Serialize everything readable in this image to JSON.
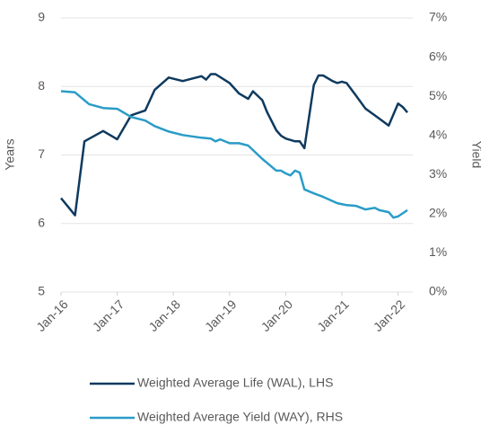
{
  "chart_data": {
    "type": "line",
    "y_label": "Years",
    "y2_label": "Yield",
    "xlim": [
      "2016-01",
      "2022-03"
    ],
    "xticks": [
      {
        "value": "2016-01",
        "label": "Jan-16"
      },
      {
        "value": "2017-01",
        "label": "Jan-17"
      },
      {
        "value": "2018-01",
        "label": "Jan-18"
      },
      {
        "value": "2019-01",
        "label": "Jan-19"
      },
      {
        "value": "2020-01",
        "label": "Jan-20"
      },
      {
        "value": "2021-01",
        "label": "Jan-21"
      },
      {
        "value": "2022-01",
        "label": "Jan-22"
      }
    ],
    "ylim": [
      5,
      9
    ],
    "yticks": [
      5,
      6,
      7,
      8,
      9
    ],
    "y2lim": [
      0,
      7
    ],
    "y2ticks": [
      {
        "value": 0,
        "label": "0%"
      },
      {
        "value": 1,
        "label": "1%"
      },
      {
        "value": 2,
        "label": "2%"
      },
      {
        "value": 3,
        "label": "3%"
      },
      {
        "value": 4,
        "label": "4%"
      },
      {
        "value": 5,
        "label": "5%"
      },
      {
        "value": 6,
        "label": "6%"
      },
      {
        "value": 7,
        "label": "7%"
      }
    ],
    "grid": true,
    "legend": "bottom",
    "series": [
      {
        "name": "Weighted Average Life (WAL), LHS",
        "color": "#0e3a5f",
        "axis": "y",
        "x": [
          "2016-01",
          "2016-04",
          "2016-06",
          "2016-10",
          "2017-01",
          "2017-04",
          "2017-07",
          "2017-09",
          "2017-12",
          "2018-03",
          "2018-07",
          "2018-08",
          "2018-09",
          "2018-10",
          "2019-01",
          "2019-03",
          "2019-05",
          "2019-06",
          "2019-08",
          "2019-09",
          "2019-11",
          "2019-12",
          "2020-01",
          "2020-03",
          "2020-04",
          "2020-05",
          "2020-07",
          "2020-08",
          "2020-09",
          "2020-11",
          "2020-12",
          "2021-01",
          "2021-02",
          "2021-04",
          "2021-06",
          "2021-08",
          "2021-10",
          "2021-11",
          "2022-01",
          "2022-02",
          "2022-03"
        ],
        "values": [
          6.37,
          6.12,
          7.2,
          7.35,
          7.23,
          7.58,
          7.65,
          7.95,
          8.13,
          8.08,
          8.15,
          8.1,
          8.18,
          8.18,
          8.05,
          7.9,
          7.82,
          7.93,
          7.8,
          7.63,
          7.36,
          7.28,
          7.24,
          7.2,
          7.2,
          7.1,
          8.02,
          8.16,
          8.16,
          8.08,
          8.05,
          8.07,
          8.05,
          7.87,
          7.68,
          7.58,
          7.48,
          7.43,
          7.75,
          7.7,
          7.62
        ]
      },
      {
        "name": "Weighted Average Yield (WAY), RHS",
        "color": "#2a9cc8",
        "axis": "y2",
        "x": [
          "2016-01",
          "2016-04",
          "2016-07",
          "2016-10",
          "2017-01",
          "2017-04",
          "2017-07",
          "2017-09",
          "2017-12",
          "2018-03",
          "2018-07",
          "2018-09",
          "2018-10",
          "2018-11",
          "2019-01",
          "2019-03",
          "2019-05",
          "2019-08",
          "2019-09",
          "2019-11",
          "2019-12",
          "2020-01",
          "2020-02",
          "2020-03",
          "2020-04",
          "2020-05",
          "2020-07",
          "2020-09",
          "2020-12",
          "2021-02",
          "2021-04",
          "2021-06",
          "2021-08",
          "2021-09",
          "2021-11",
          "2021-12",
          "2022-01",
          "2022-03"
        ],
        "values": [
          5.13,
          5.1,
          4.8,
          4.7,
          4.68,
          4.47,
          4.38,
          4.24,
          4.1,
          4.01,
          3.94,
          3.92,
          3.85,
          3.9,
          3.8,
          3.8,
          3.74,
          3.4,
          3.3,
          3.1,
          3.1,
          3.03,
          2.98,
          3.1,
          3.05,
          2.62,
          2.52,
          2.43,
          2.27,
          2.22,
          2.2,
          2.11,
          2.15,
          2.09,
          2.04,
          1.9,
          1.93,
          2.09
        ]
      }
    ]
  }
}
